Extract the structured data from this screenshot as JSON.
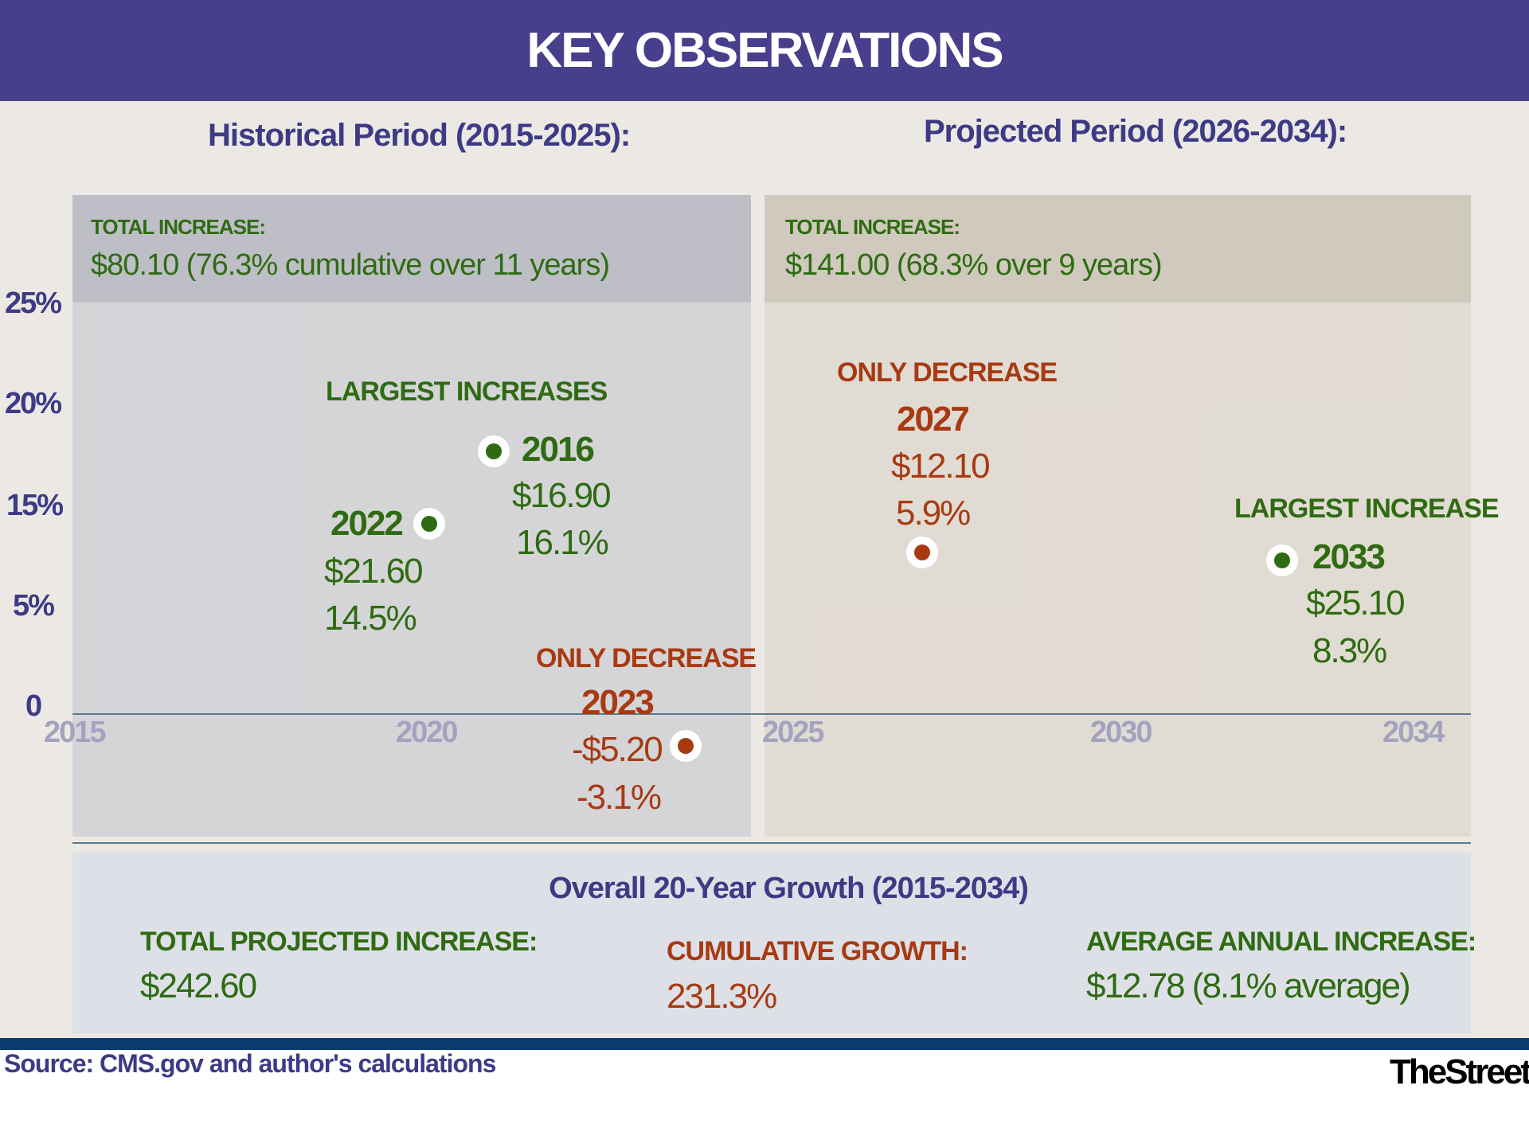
{
  "title": "KEY OBSERVATIONS",
  "historical": {
    "heading": "Historical Period (2015-2025):",
    "total_label": "TOTAL INCREASE:",
    "total_value": "$80.10 (76.3% cumulative over 11 years)"
  },
  "projected": {
    "heading": "Projected Period (2026-2034):",
    "total_label": "TOTAL INCREASE:",
    "total_value": "$141.00 (68.3% over 9 years)"
  },
  "annotations": {
    "largest_increases": "LARGEST INCREASES",
    "y2016": {
      "year": "2016",
      "amount": "$16.90",
      "pct": "16.1%"
    },
    "y2022": {
      "year": "2022",
      "amount": "$21.60",
      "pct": "14.5%"
    },
    "only_decrease_hist": "ONLY DECREASE",
    "y2023": {
      "year": "2023",
      "amount": "-$5.20",
      "pct": "-3.1%"
    },
    "only_decrease_proj": "ONLY DECREASE",
    "y2027": {
      "year": "2027",
      "amount": "$12.10",
      "pct": "5.9%"
    },
    "largest_increase": "LARGEST INCREASE",
    "y2033": {
      "year": "2033",
      "amount": "$25.10",
      "pct": "8.3%"
    }
  },
  "chart_data": {
    "type": "scatter",
    "title": "KEY OBSERVATIONS",
    "xlabel": "",
    "ylabel": "",
    "y_ticks": [
      "25%",
      "20%",
      "15%",
      "5%",
      "0"
    ],
    "x_ticks": [
      "2015",
      "2020",
      "2025",
      "2030",
      "2034"
    ],
    "xlim": [
      2015,
      2034
    ],
    "ylim": [
      0,
      25
    ],
    "points": [
      {
        "year": 2016,
        "pct": 16.1,
        "amount": 16.9,
        "category": "largest increase"
      },
      {
        "year": 2022,
        "pct": 14.5,
        "amount": 21.6,
        "category": "largest increase"
      },
      {
        "year": 2023,
        "pct": -3.1,
        "amount": -5.2,
        "category": "only decrease"
      },
      {
        "year": 2027,
        "pct": 5.9,
        "amount": 12.1,
        "category": "only decrease"
      },
      {
        "year": 2033,
        "pct": 8.3,
        "amount": 25.1,
        "category": "largest increase"
      }
    ],
    "colors": {
      "increase": "#2f6b12",
      "decrease": "#a83a12"
    }
  },
  "overall": {
    "heading": "Overall 20-Year Growth (2015-2034)",
    "total_label": "TOTAL PROJECTED INCREASE:",
    "total_value": "$242.60",
    "cum_label": "CUMULATIVE GROWTH:",
    "cum_value": "231.3%",
    "avg_label": "AVERAGE ANNUAL INCREASE:",
    "avg_value": "$12.78 (8.1% average)"
  },
  "footer": {
    "source": "Source: CMS.gov and author's calculations",
    "logo": "TheStreet."
  }
}
